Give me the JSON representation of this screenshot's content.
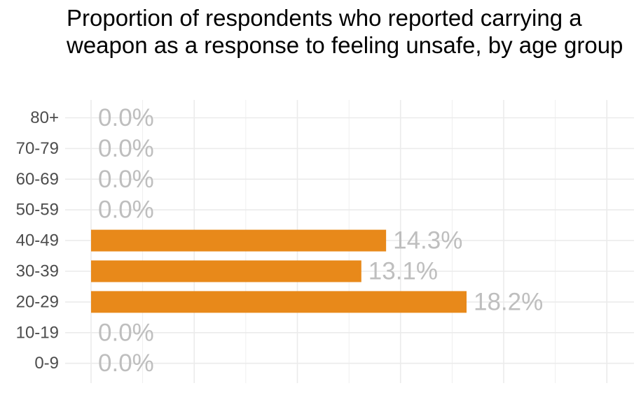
{
  "chart_data": {
    "type": "bar",
    "orientation": "horizontal",
    "title": "Proportion of respondents who reported carrying a weapon as a response to feeling unsafe, by age group",
    "xlabel": "",
    "ylabel": "",
    "categories": [
      "80+",
      "70-79",
      "60-69",
      "50-59",
      "40-49",
      "30-39",
      "20-29",
      "10-19",
      "0-9"
    ],
    "values": [
      0.0,
      0.0,
      0.0,
      0.0,
      14.3,
      13.1,
      18.2,
      0.0,
      0.0
    ],
    "value_labels": [
      "0.0%",
      "0.0%",
      "0.0%",
      "0.0%",
      "14.3%",
      "13.1%",
      "18.2%",
      "0.0%",
      "0.0%"
    ],
    "xlim": [
      0,
      25
    ],
    "grid": true,
    "legend": "none",
    "bar_color": "#E8891A",
    "label_color": "#BEBEBE",
    "grid_color": "#EBEBEB",
    "tick_label_color": "#4D4D4D"
  }
}
